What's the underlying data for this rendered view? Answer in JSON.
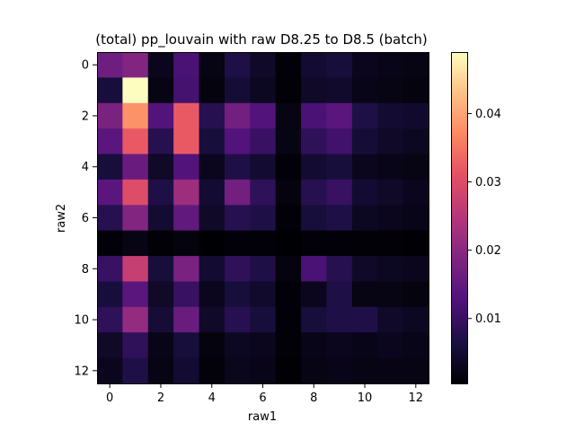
{
  "chart_data": {
    "type": "heatmap",
    "title": "(total) pp_louvain with raw D8.25 to D8.5 (batch)",
    "xlabel": "raw1",
    "ylabel": "raw2",
    "x_ticks": [
      "0",
      "2",
      "4",
      "6",
      "8",
      "10",
      "12"
    ],
    "y_ticks": [
      "0",
      "2",
      "4",
      "6",
      "8",
      "10",
      "12"
    ],
    "colormap": "magma",
    "colorbar": {
      "vmin": 0.0005,
      "vmax": 0.049,
      "ticks": [
        0.01,
        0.02,
        0.03,
        0.04
      ],
      "tick_labels": [
        "0.01",
        "0.02",
        "0.03",
        "0.04"
      ]
    },
    "x": [
      0,
      1,
      2,
      3,
      4,
      5,
      6,
      7,
      8,
      9,
      10,
      11,
      12
    ],
    "y": [
      0,
      1,
      2,
      3,
      4,
      5,
      6,
      7,
      8,
      9,
      10,
      11,
      12
    ],
    "values": [
      [
        0.0165,
        0.019,
        0.003,
        0.012,
        0.002,
        0.007,
        0.004,
        0.001,
        0.005,
        0.006,
        0.003,
        0.0025,
        0.002
      ],
      [
        0.006,
        0.049,
        0.002,
        0.0115,
        0.0015,
        0.0055,
        0.0035,
        0.0008,
        0.004,
        0.0045,
        0.0025,
        0.002,
        0.0015
      ],
      [
        0.018,
        0.038,
        0.013,
        0.032,
        0.008,
        0.017,
        0.013,
        0.002,
        0.012,
        0.014,
        0.007,
        0.005,
        0.0045
      ],
      [
        0.014,
        0.032,
        0.008,
        0.032,
        0.006,
        0.013,
        0.01,
        0.002,
        0.009,
        0.011,
        0.0055,
        0.004,
        0.0035
      ],
      [
        0.006,
        0.016,
        0.004,
        0.013,
        0.003,
        0.007,
        0.005,
        0.001,
        0.005,
        0.006,
        0.003,
        0.0025,
        0.002
      ],
      [
        0.014,
        0.03,
        0.007,
        0.022,
        0.005,
        0.017,
        0.009,
        0.0015,
        0.008,
        0.01,
        0.005,
        0.004,
        0.003
      ],
      [
        0.008,
        0.019,
        0.005,
        0.015,
        0.004,
        0.008,
        0.007,
        0.001,
        0.006,
        0.007,
        0.0035,
        0.003,
        0.0025
      ],
      [
        0.001,
        0.002,
        0.0008,
        0.0015,
        0.0005,
        0.001,
        0.001,
        0.0005,
        0.001,
        0.001,
        0.0008,
        0.0008,
        0.0006
      ],
      [
        0.01,
        0.027,
        0.006,
        0.018,
        0.005,
        0.009,
        0.007,
        0.0015,
        0.012,
        0.008,
        0.004,
        0.0035,
        0.003
      ],
      [
        0.006,
        0.014,
        0.004,
        0.01,
        0.003,
        0.006,
        0.0045,
        0.001,
        0.003,
        0.007,
        0.002,
        0.002,
        0.0015
      ],
      [
        0.009,
        0.021,
        0.0055,
        0.016,
        0.004,
        0.008,
        0.006,
        0.001,
        0.006,
        0.007,
        0.007,
        0.004,
        0.0035
      ],
      [
        0.004,
        0.009,
        0.0025,
        0.006,
        0.0015,
        0.0035,
        0.003,
        0.0008,
        0.0025,
        0.003,
        0.0025,
        0.003,
        0.0025
      ],
      [
        0.003,
        0.007,
        0.002,
        0.005,
        0.0012,
        0.0028,
        0.0025,
        0.0006,
        0.002,
        0.0025,
        0.002,
        0.002,
        0.002
      ]
    ]
  }
}
